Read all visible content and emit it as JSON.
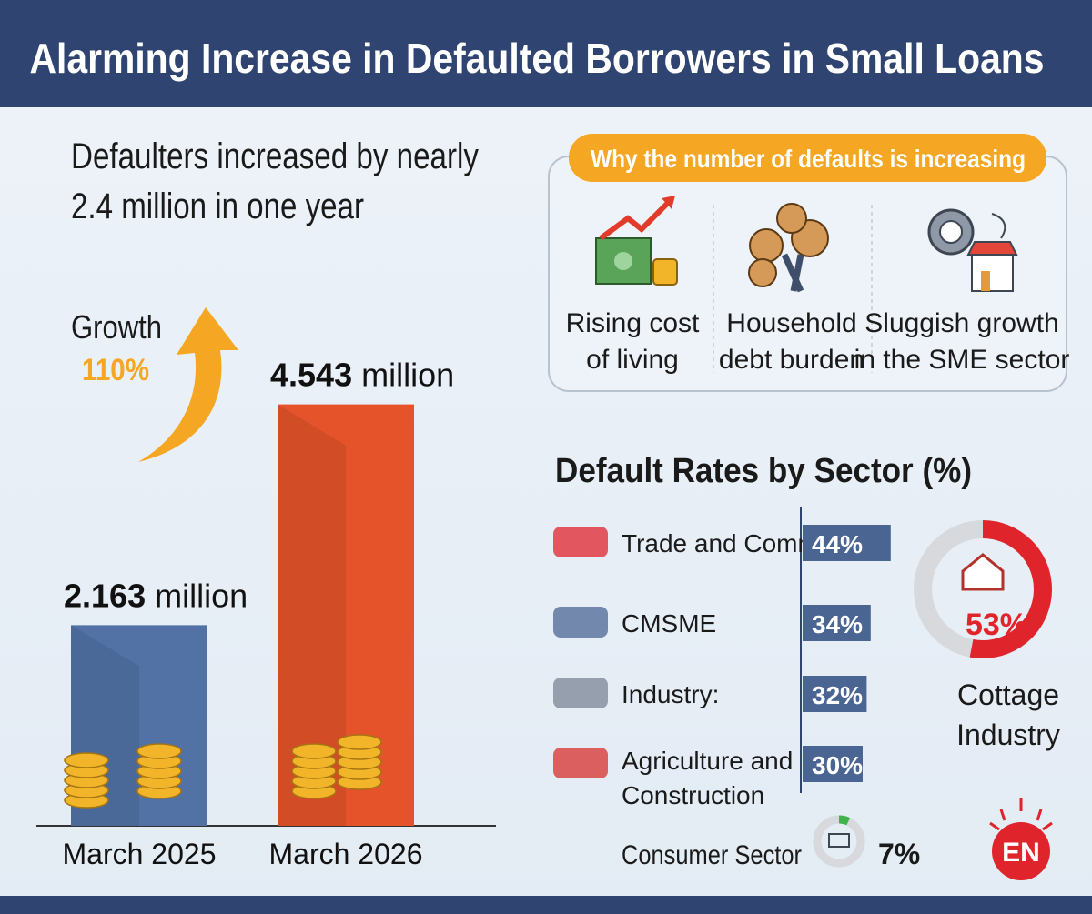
{
  "header": {
    "title": "Alarming Increase in Defaulted Borrowers in Small Loans"
  },
  "headline": [
    "Defaulters increased by nearly",
    "2.4 million in one year"
  ],
  "growth": {
    "label": "Growth",
    "value": "110%"
  },
  "reasons": {
    "title": "Why the number of defaults is increasing",
    "items": [
      [
        "Rising cost",
        "of living"
      ],
      [
        "Household",
        "debt burden"
      ],
      [
        "Sluggish growth",
        "in the SME sector"
      ]
    ]
  },
  "logo": "EN",
  "chart_data": [
    {
      "type": "bar",
      "categories": [
        "March 2025",
        "March 2026"
      ],
      "values": [
        2.163,
        4.543
      ],
      "value_labels": [
        "2.163 million",
        "4.543 million"
      ],
      "colors": [
        "#5272a5",
        "#e4532a"
      ]
    },
    {
      "type": "hbar",
      "title": "Default Rates by Sector (%)",
      "categories": [
        "Trade and Commerce",
        "CMSME",
        "Industry:",
        "Agriculture and Construction"
      ],
      "values": [
        44,
        34,
        32,
        30
      ],
      "value_labels": [
        "44%",
        "34%",
        "32%",
        "30%"
      ],
      "color": "#4b6593"
    },
    {
      "type": "donut",
      "categories": [
        "Cottage Industry"
      ],
      "values": [
        53
      ],
      "value_labels": [
        "53%"
      ],
      "color": "#e0242c"
    },
    {
      "type": "donut",
      "categories": [
        "Consumer Sector"
      ],
      "values": [
        7
      ],
      "value_labels": [
        "7%"
      ],
      "color": "#3db54a"
    }
  ]
}
